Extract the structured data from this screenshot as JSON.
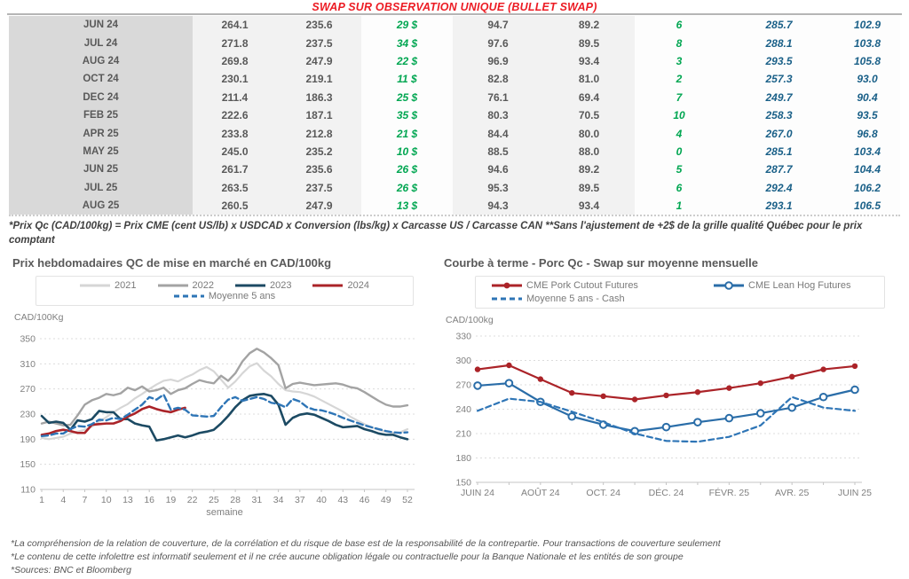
{
  "title": "SWAP SUR OBSERVATION UNIQUE (BULLET SWAP)",
  "table": {
    "rows": [
      [
        "JUN 24",
        "264.1",
        "235.6",
        "29 $",
        "94.7",
        "89.2",
        "6",
        "285.7",
        "102.9"
      ],
      [
        "JUL 24",
        "271.8",
        "237.5",
        "34 $",
        "97.6",
        "89.5",
        "8",
        "288.1",
        "103.8"
      ],
      [
        "AUG 24",
        "269.8",
        "247.9",
        "22 $",
        "96.9",
        "93.4",
        "3",
        "293.5",
        "105.8"
      ],
      [
        "OCT 24",
        "230.1",
        "219.1",
        "11 $",
        "82.8",
        "81.0",
        "2",
        "257.3",
        "93.0"
      ],
      [
        "DEC 24",
        "211.4",
        "186.3",
        "25 $",
        "76.1",
        "69.4",
        "7",
        "249.7",
        "90.4"
      ],
      [
        "FEB 25",
        "222.6",
        "187.1",
        "35 $",
        "80.3",
        "70.5",
        "10",
        "258.3",
        "93.5"
      ],
      [
        "APR 25",
        "233.8",
        "212.8",
        "21 $",
        "84.4",
        "80.0",
        "4",
        "267.0",
        "96.8"
      ],
      [
        "MAY 25",
        "245.0",
        "235.2",
        "10 $",
        "88.5",
        "88.0",
        "0",
        "285.1",
        "103.4"
      ],
      [
        "JUN 25",
        "261.7",
        "235.6",
        "26 $",
        "94.6",
        "89.2",
        "5",
        "287.7",
        "104.4"
      ],
      [
        "JUL 25",
        "263.5",
        "237.5",
        "26 $",
        "95.3",
        "89.5",
        "6",
        "292.4",
        "106.2"
      ],
      [
        "AUG 25",
        "260.5",
        "247.9",
        "13 $",
        "94.3",
        "93.4",
        "1",
        "293.1",
        "106.5"
      ]
    ]
  },
  "table_note": "*Prix Qc (CAD/100kg) = Prix CME (cent US/lb) x USDCAD x Conversion (lbs/kg) x Carcasse US / Carcasse CAN **Sans l'ajustement de +2$ de la grille qualité Québec pour le prix comptant",
  "footnotes": [
    "*La compréhension de la relation de couverture, de la corrélation et du risque de base est de la responsabilité de la contrepartie. Pour transactions de couverture seulement",
    "*Le contenu de cette infolettre est informatif seulement et il ne crée aucune obligation légale ou contractuelle pour la Banque Nationale et les entités de son groupe",
    "*Sources: BNC et Bloomberg"
  ],
  "colors": {
    "title_red": "#ec1c24",
    "green_value": "#00a651",
    "blue_value": "#1a6088",
    "month_col_bg": "#d9d9d9",
    "num_col_bg": "#f2f2f2",
    "text_gray": "#595959"
  },
  "chart_data": [
    {
      "type": "line",
      "title": "Prix hebdomadaires QC de mise en marché en CAD/100kg",
      "unit_label": "CAD/100Kg",
      "xlabel": "semaine",
      "ylim": [
        110,
        350
      ],
      "yticks": [
        110,
        150,
        190,
        230,
        270,
        310,
        350
      ],
      "x_count": 52,
      "xtick_labels": [
        "1",
        "4",
        "7",
        "10",
        "13",
        "16",
        "19",
        "22",
        "25",
        "28",
        "31",
        "34",
        "37",
        "40",
        "43",
        "46",
        "49",
        "52"
      ],
      "xtick_positions": [
        0,
        3,
        6,
        9,
        12,
        15,
        18,
        21,
        24,
        27,
        30,
        33,
        36,
        39,
        42,
        45,
        48,
        51
      ],
      "tick_every_point": false,
      "grid": true,
      "legend_position": "top",
      "series": [
        {
          "name": "2021",
          "color": "#d6d6d6",
          "width": 2.2,
          "values": [
            192,
            190,
            192,
            194,
            199,
            202,
            205,
            210,
            218,
            225,
            233,
            240,
            246,
            255,
            262,
            270,
            277,
            283,
            285,
            282,
            288,
            293,
            300,
            305,
            298,
            285,
            272,
            282,
            295,
            306,
            311,
            299,
            290,
            278,
            268,
            266,
            265,
            262,
            258,
            252,
            246,
            240,
            234,
            226,
            220,
            214,
            209,
            205,
            202,
            200,
            201,
            206
          ]
        },
        {
          "name": "2022",
          "color": "#a3a3a3",
          "width": 2.4,
          "values": [
            215,
            218,
            215,
            212,
            213,
            228,
            245,
            252,
            256,
            262,
            260,
            263,
            272,
            268,
            274,
            266,
            268,
            272,
            262,
            268,
            271,
            278,
            284,
            281,
            279,
            291,
            283,
            295,
            314,
            327,
            334,
            328,
            319,
            308,
            271,
            278,
            280,
            278,
            276,
            277,
            278,
            279,
            277,
            273,
            271,
            265,
            258,
            251,
            245,
            242,
            242,
            244
          ]
        },
        {
          "name": "2023",
          "color": "#1c4a63",
          "width": 2.6,
          "values": [
            227,
            216,
            218,
            216,
            205,
            220,
            218,
            222,
            235,
            233,
            233,
            222,
            222,
            215,
            212,
            210,
            188,
            190,
            193,
            196,
            193,
            196,
            200,
            202,
            205,
            215,
            227,
            241,
            252,
            259,
            261,
            262,
            259,
            245,
            213,
            224,
            229,
            231,
            229,
            224,
            219,
            213,
            209,
            210,
            211,
            206,
            203,
            199,
            197,
            197,
            193,
            190
          ]
        },
        {
          "name": "2024",
          "color": "#aa2328",
          "width": 2.6,
          "values": [
            197,
            199,
            203,
            205,
            203,
            200,
            200,
            213,
            214,
            215,
            215,
            219,
            226,
            231,
            238,
            242,
            238,
            235,
            233,
            237,
            240
          ]
        },
        {
          "name": "Moyenne 5 ans",
          "color": "#2e75b6",
          "width": 2.4,
          "dash": "7 4",
          "values": [
            195,
            196,
            199,
            199,
            206,
            211,
            210,
            214,
            221,
            220,
            224,
            222,
            229,
            237,
            245,
            257,
            253,
            261,
            237,
            240,
            237,
            228,
            227,
            226,
            227,
            241,
            253,
            257,
            251,
            254,
            257,
            254,
            248,
            246,
            241,
            254,
            250,
            241,
            237,
            236,
            233,
            229,
            224,
            220,
            216,
            212,
            209,
            206,
            203,
            201,
            200,
            201
          ]
        }
      ]
    },
    {
      "type": "line",
      "title": "Courbe à terme - Porc Qc - Swap sur moyenne mensuelle",
      "unit_label": "CAD/100kg",
      "xlabel": "",
      "ylim": [
        150,
        330
      ],
      "yticks": [
        150,
        180,
        210,
        240,
        270,
        300,
        330
      ],
      "x_count": 13,
      "xtick_labels": [
        "JUIN 24",
        "AOÛT 24",
        "OCT. 24",
        "DÉC. 24",
        "FÉVR. 25",
        "AVR. 25",
        "JUIN 25"
      ],
      "xtick_positions": [
        0,
        2,
        4,
        6,
        8,
        10,
        12
      ],
      "tick_every_point": true,
      "grid": true,
      "legend_position": "top",
      "series": [
        {
          "name": "CME Pork Cutout Futures",
          "color": "#ab2328",
          "width": 2.2,
          "marker": "dot",
          "values": [
            289,
            294,
            277,
            260,
            256,
            252,
            257,
            261,
            266,
            272,
            280,
            289,
            293
          ]
        },
        {
          "name": "CME Lean Hog Futures",
          "color": "#2a6da8",
          "width": 2.2,
          "marker": "circle",
          "values": [
            269,
            272,
            249,
            231,
            221,
            213,
            218,
            224,
            229,
            235,
            242,
            255,
            264
          ]
        },
        {
          "name": "Moyenne 5 ans - Cash",
          "color": "#2e75b6",
          "width": 2.2,
          "dash": "6 4",
          "values": [
            238,
            253,
            249,
            237,
            224,
            210,
            201,
            200,
            206,
            220,
            255,
            242,
            238
          ]
        }
      ]
    }
  ]
}
